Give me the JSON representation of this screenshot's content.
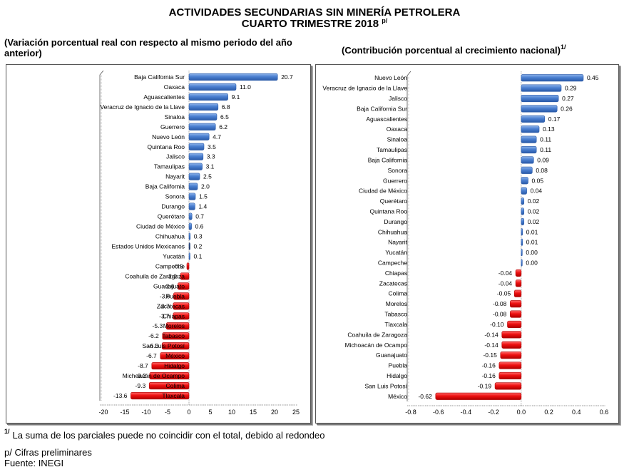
{
  "header": {
    "title_line1": "ACTIVIDADES SECUNDARIAS SIN MINERÍA PETROLERA",
    "title_line2": "CUARTO TRIMESTRE 2018",
    "title_line2_note": "p/"
  },
  "subtitles": {
    "left": "(Variación porcentual real con respecto al mismo periodo del año anterior)",
    "right": "(Contribución porcentual al crecimiento nacional)",
    "right_note": "1/"
  },
  "footnotes": {
    "note1_mark": "1/",
    "note1_text": "La suma de los parciales puede no coincidir con el total, debido al redondeo",
    "note2": "p/ Cifras preliminares",
    "note3": "Fuente: INEGI"
  },
  "colors": {
    "positive": "#4a7fd0",
    "positive_dark": "#2a5aa8",
    "negative": "#ee1111",
    "negative_dark": "#b00000",
    "national": "#1f3a6e"
  },
  "chart_data": [
    {
      "type": "bar",
      "orientation": "horizontal",
      "title": "Variación porcentual real con respecto al mismo periodo del año anterior",
      "xlabel": "",
      "ylabel": "",
      "xlim": [
        -20,
        25
      ],
      "xticks": [
        -20,
        -15,
        -10,
        -5,
        0,
        5,
        10,
        15,
        20,
        25
      ],
      "tick_labels": [
        "-20",
        "-15",
        "-10",
        "-5",
        "0",
        "5",
        "10",
        "15",
        "20",
        "25"
      ],
      "grid": false,
      "legend": "none",
      "categories": [
        "Baja California Sur",
        "Oaxaca",
        "Aguascalientes",
        "Veracruz de Ignacio de la Llave",
        "Sinaloa",
        "Guerrero",
        "Nuevo León",
        "Quintana Roo",
        "Jalisco",
        "Tamaulipas",
        "Nayarit",
        "Baja California",
        "Sonora",
        "Durango",
        "Querétaro",
        "Ciudad de México",
        "Chihuahua",
        "Estados Unidos Mexicanos",
        "Yucatán",
        "Campeche",
        "Coahuila de Zaragoza",
        "Guanajuato",
        "Puebla",
        "Zacatecas",
        "Chiapas",
        "Morelos",
        "Tabasco",
        "San Luis Potosí",
        "México",
        "Hidalgo",
        "Michoacán de Ocampo",
        "Colima",
        "Tlaxcala"
      ],
      "values": [
        20.7,
        11.0,
        9.1,
        6.8,
        6.5,
        6.2,
        4.7,
        3.5,
        3.3,
        3.1,
        2.5,
        2.0,
        1.5,
        1.4,
        0.7,
        0.6,
        0.3,
        0.2,
        0.1,
        -0.5,
        -2.0,
        -2.6,
        -3.6,
        -3.7,
        -3.7,
        -5.3,
        -6.2,
        -6.3,
        -6.7,
        -8.7,
        -9.2,
        -9.3,
        -13.6
      ],
      "labels": [
        "20.7",
        "11.0",
        "9.1",
        "6.8",
        "6.5",
        "6.2",
        "4.7",
        "3.5",
        "3.3",
        "3.1",
        "2.5",
        "2.0",
        "1.5",
        "1.4",
        "0.7",
        "0.6",
        "0.3",
        "0.2",
        "0.1",
        "-0.5",
        "-2.0",
        "-2.6",
        "-3.6",
        "-3.7",
        "-3.7",
        "-5.3",
        "-6.2",
        "-6.3",
        "-6.7",
        "-8.7",
        "-9.2",
        "-9.3",
        "-13.6"
      ],
      "highlight": "Estados Unidos Mexicanos"
    },
    {
      "type": "bar",
      "orientation": "horizontal",
      "title": "Contribución porcentual al crecimiento nacional",
      "xlabel": "",
      "ylabel": "",
      "xlim": [
        -0.8,
        0.6
      ],
      "xticks": [
        -0.8,
        -0.6,
        -0.4,
        -0.2,
        0.0,
        0.2,
        0.4,
        0.6
      ],
      "tick_labels": [
        "-0.8",
        "-0.6",
        "-0.4",
        "-0.2",
        "0.0",
        "0.2",
        "0.4",
        "0.6"
      ],
      "grid": false,
      "legend": "none",
      "categories": [
        "Nuevo León",
        "Veracruz de Ignacio de la Llave",
        "Jalisco",
        "Baja California Sur",
        "Aguascalientes",
        "Oaxaca",
        "Sinaloa",
        "Tamaulipas",
        "Baja California",
        "Sonora",
        "Guerrero",
        "Ciudad de México",
        "Querétaro",
        "Quintana Roo",
        "Durango",
        "Chihuahua",
        "Nayarit",
        "Yucatán",
        "Campeche",
        "Chiapas",
        "Zacatecas",
        "Colima",
        "Morelos",
        "Tabasco",
        "Tlaxcala",
        "Coahuila de Zaragoza",
        "Michoacán de Ocampo",
        "Guanajuato",
        "Puebla",
        "Hidalgo",
        "San Luis Potosí",
        "México"
      ],
      "values": [
        0.45,
        0.29,
        0.27,
        0.26,
        0.17,
        0.13,
        0.11,
        0.11,
        0.09,
        0.08,
        0.05,
        0.04,
        0.02,
        0.02,
        0.02,
        0.01,
        0.01,
        0.0,
        0.0,
        -0.04,
        -0.04,
        -0.05,
        -0.08,
        -0.08,
        -0.1,
        -0.14,
        -0.14,
        -0.15,
        -0.16,
        -0.16,
        -0.19,
        -0.62
      ],
      "labels": [
        "0.45",
        "0.29",
        "0.27",
        "0.26",
        "0.17",
        "0.13",
        "0.11",
        "0.11",
        "0.09",
        "0.08",
        "0.05",
        "0.04",
        "0.02",
        "0.02",
        "0.02",
        "0.01",
        "0.01",
        "0.00",
        "0.00",
        "-0.04",
        "-0.04",
        "-0.05",
        "-0.08",
        "-0.08",
        "-0.10",
        "-0.14",
        "-0.14",
        "-0.15",
        "-0.16",
        "-0.16",
        "-0.19",
        "-0.62"
      ]
    }
  ]
}
